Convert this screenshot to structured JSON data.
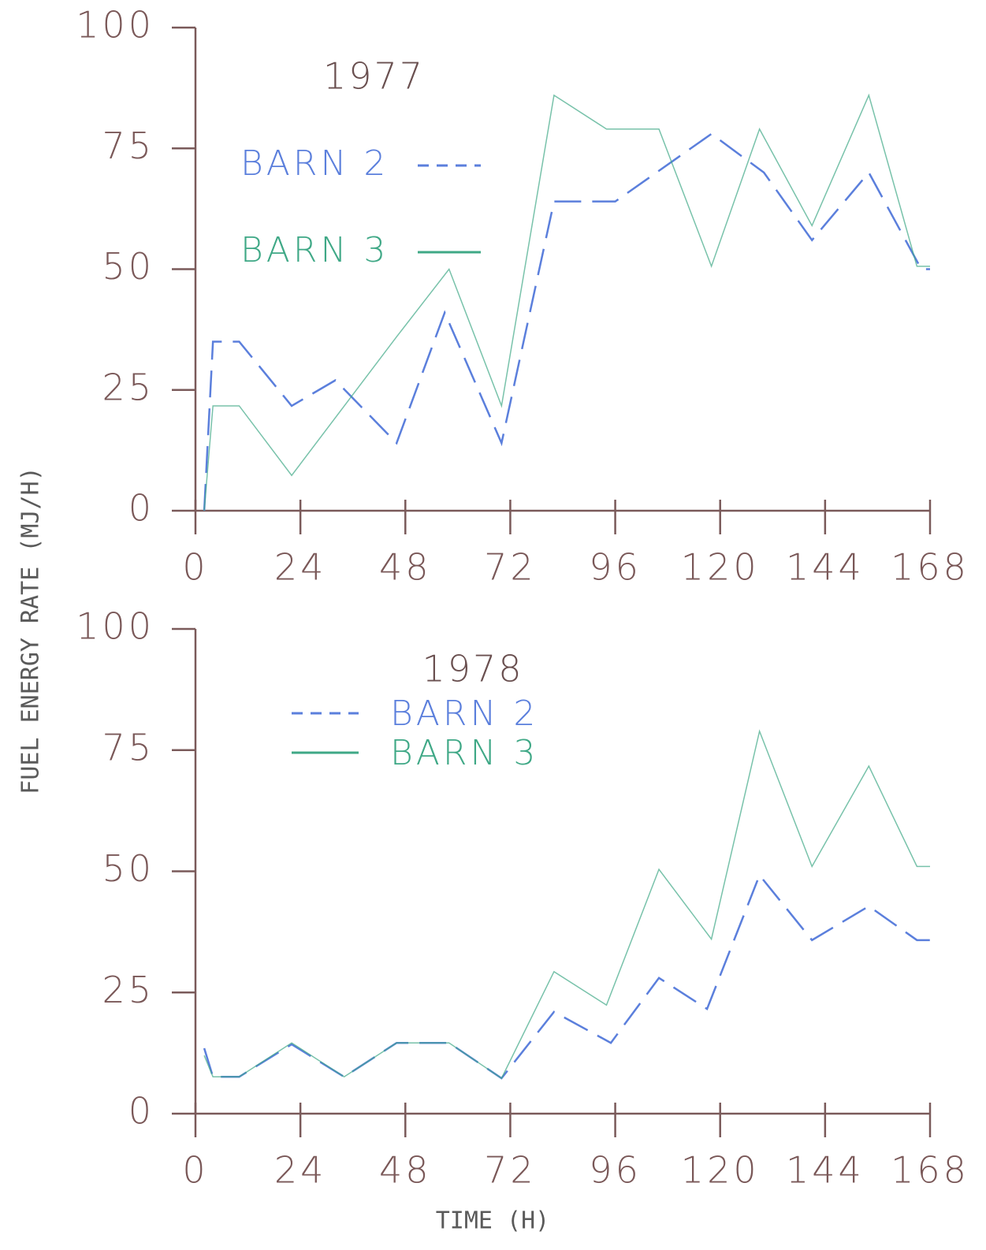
{
  "chart_data": [
    {
      "type": "line",
      "title": "1977",
      "ylabel": "FUEL ENERGY RATE (MJ/H)",
      "xlim": [
        0,
        168
      ],
      "xticks": [
        0,
        24,
        48,
        72,
        96,
        120,
        144,
        168
      ],
      "ylim": [
        0,
        100
      ],
      "yticks": [
        0,
        25,
        50,
        75,
        100
      ],
      "series": [
        {
          "name": "BARN 2",
          "color": "#5b7fdc",
          "style": "dashed",
          "x": [
            2,
            4,
            10,
            22,
            32,
            46,
            57,
            70,
            82,
            96,
            118,
            130,
            141,
            154,
            166,
            168
          ],
          "values": [
            0,
            35,
            35,
            21.7,
            27,
            14,
            41,
            14,
            64,
            64,
            78,
            70,
            56,
            70,
            50,
            50
          ]
        },
        {
          "name": "BARN 3",
          "color": "#3fa886",
          "style": "solid",
          "x": [
            2,
            4,
            10,
            22,
            46,
            58,
            70,
            82,
            94,
            106,
            118,
            129,
            141,
            154,
            165,
            168
          ],
          "values": [
            0,
            21.7,
            21.7,
            7.3,
            36,
            50,
            21.7,
            86,
            79,
            79,
            50.6,
            79,
            59,
            86,
            50.6,
            50.6
          ]
        }
      ]
    },
    {
      "type": "line",
      "title": "1978",
      "xlabel": "TIME (H)",
      "xlim": [
        0,
        168
      ],
      "xticks": [
        0,
        24,
        48,
        72,
        96,
        120,
        144,
        168
      ],
      "ylim": [
        0,
        100
      ],
      "yticks": [
        0,
        25,
        50,
        75,
        100
      ],
      "series": [
        {
          "name": "BARN 2",
          "color": "#5b7fdc",
          "style": "dashed",
          "x": [
            2,
            4,
            10,
            22,
            34,
            46,
            58,
            70,
            82,
            95,
            106,
            117,
            129,
            141,
            154,
            165,
            168
          ],
          "values": [
            13.5,
            7.6,
            7.6,
            14.3,
            7.6,
            14.6,
            14.6,
            7.3,
            21,
            14.6,
            28,
            21.6,
            49.2,
            35.8,
            42.8,
            35.8,
            35.8
          ]
        },
        {
          "name": "BARN 3",
          "color": "#3fa886",
          "style": "solid",
          "x": [
            2,
            4,
            10,
            22,
            34,
            46,
            58,
            70,
            82,
            94,
            106,
            118,
            129,
            141,
            154,
            165,
            168
          ],
          "values": [
            12,
            7.6,
            7.6,
            14.6,
            7.6,
            14.6,
            14.6,
            7.3,
            29.3,
            22.4,
            50.4,
            36,
            78.9,
            51,
            71.7,
            51,
            51
          ]
        }
      ]
    }
  ]
}
